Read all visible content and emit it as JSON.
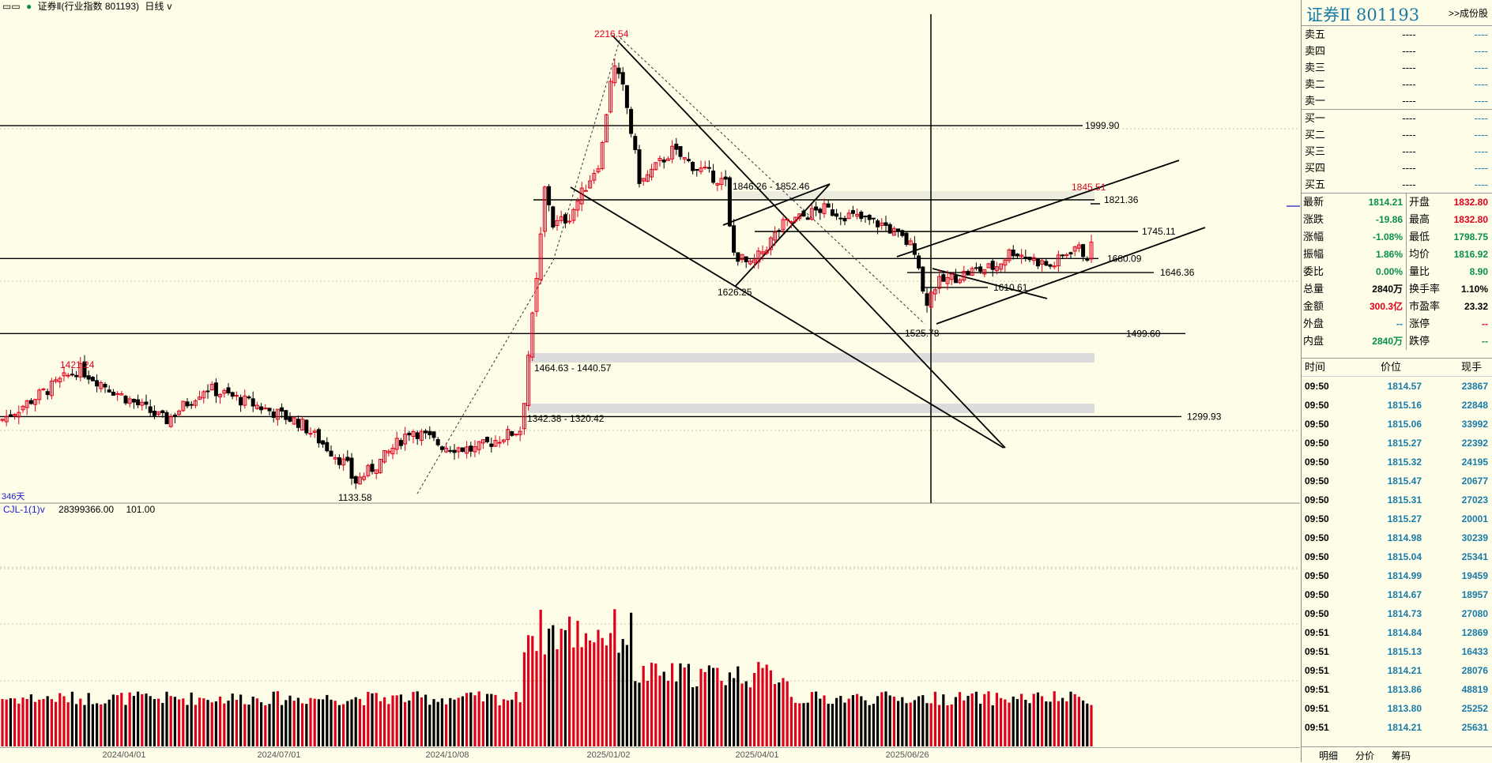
{
  "title_bar": {
    "name": "证券Ⅱ(行业指数 801193)",
    "period": "日线",
    "period_arrow": "v"
  },
  "chart": {
    "price_labels": {
      "high": "2216.54",
      "low": "1133.58",
      "left_high": "1421.24",
      "recent_high": "1845.51",
      "l1626": "1626.25",
      "l1525": "1525.78",
      "l1610": "1610.61",
      "l1646": "1646.36",
      "l1680": "1680.09",
      "l1745": "1745.11",
      "l1821": "1821.36",
      "l1999": "1999.90",
      "l1499": "1499.60",
      "l1299": "1299.93",
      "range1": "1846.26 - 1852.46",
      "range2": "1464.63 - 1440.57",
      "range3": "1342.38 - 1320.42"
    },
    "days": "346天",
    "x_axis": [
      "2024/04/01",
      "2024/07/01",
      "2024/10/08",
      "2025/01/02",
      "2025/04/01",
      "2025/06/26"
    ],
    "colors": {
      "up": "#e0001b",
      "down": "#000000",
      "bg": "#fdfde8"
    }
  },
  "volume": {
    "indicator": "CJL-1(1)",
    "arrow": "v",
    "value": "28399366.00",
    "value2": "101.00"
  },
  "panel": {
    "name": "证券Ⅱ",
    "code": "801193",
    "link": ">>成份股",
    "orderbook": [
      {
        "label": "卖五",
        "price": "----",
        "vol": "----"
      },
      {
        "label": "卖四",
        "price": "----",
        "vol": "----"
      },
      {
        "label": "卖三",
        "price": "----",
        "vol": "----"
      },
      {
        "label": "卖二",
        "price": "----",
        "vol": "----"
      },
      {
        "label": "卖一",
        "price": "----",
        "vol": "----"
      },
      {
        "label": "买一",
        "price": "----",
        "vol": "----"
      },
      {
        "label": "买二",
        "price": "----",
        "vol": "----"
      },
      {
        "label": "买三",
        "price": "----",
        "vol": "----"
      },
      {
        "label": "买四",
        "price": "----",
        "vol": "----"
      },
      {
        "label": "买五",
        "price": "----",
        "vol": "----"
      }
    ],
    "stats": [
      {
        "k1": "最新",
        "v1": "1814.21",
        "c1": "green",
        "k2": "开盘",
        "v2": "1832.80",
        "c2": "red"
      },
      {
        "k1": "涨跌",
        "v1": "-19.86",
        "c1": "green",
        "k2": "最高",
        "v2": "1832.80",
        "c2": "red"
      },
      {
        "k1": "涨幅",
        "v1": "-1.08%",
        "c1": "green",
        "k2": "最低",
        "v2": "1798.75",
        "c2": "green"
      },
      {
        "k1": "振幅",
        "v1": "1.86%",
        "c1": "green",
        "k2": "均价",
        "v2": "1816.92",
        "c2": "green"
      },
      {
        "k1": "委比",
        "v1": "0.00%",
        "c1": "green",
        "k2": "量比",
        "v2": "8.90",
        "c2": "green"
      },
      {
        "k1": "总量",
        "v1": "2840万",
        "c1": "blk",
        "k2": "换手率",
        "v2": "1.10%",
        "c2": "blk"
      },
      {
        "k1": "金额",
        "v1": "300.3亿",
        "c1": "red",
        "k2": "市盈率",
        "v2": "23.32",
        "c2": "blk"
      },
      {
        "k1": "外盘",
        "v1": "--",
        "c1": "blue",
        "k2": "涨停",
        "v2": "--",
        "c2": "red"
      },
      {
        "k1": "内盘",
        "v1": "2840万",
        "c1": "green",
        "k2": "跌停",
        "v2": "--",
        "c2": "green"
      }
    ],
    "ticks_header": {
      "time": "时间",
      "price": "价位",
      "vol": "现手"
    },
    "ticks": [
      {
        "time": "09:50",
        "price": "1814.57",
        "vol": "23867"
      },
      {
        "time": "09:50",
        "price": "1815.16",
        "vol": "22848"
      },
      {
        "time": "09:50",
        "price": "1815.06",
        "vol": "33992"
      },
      {
        "time": "09:50",
        "price": "1815.27",
        "vol": "22392"
      },
      {
        "time": "09:50",
        "price": "1815.32",
        "vol": "24195"
      },
      {
        "time": "09:50",
        "price": "1815.47",
        "vol": "20677"
      },
      {
        "time": "09:50",
        "price": "1815.31",
        "vol": "27023"
      },
      {
        "time": "09:50",
        "price": "1815.27",
        "vol": "20001"
      },
      {
        "time": "09:50",
        "price": "1814.98",
        "vol": "30239"
      },
      {
        "time": "09:50",
        "price": "1815.04",
        "vol": "25341"
      },
      {
        "time": "09:50",
        "price": "1814.99",
        "vol": "19459"
      },
      {
        "time": "09:50",
        "price": "1814.67",
        "vol": "18957"
      },
      {
        "time": "09:50",
        "price": "1814.73",
        "vol": "27080"
      },
      {
        "time": "09:51",
        "price": "1814.84",
        "vol": "12869"
      },
      {
        "time": "09:51",
        "price": "1815.13",
        "vol": "16433"
      },
      {
        "time": "09:51",
        "price": "1814.21",
        "vol": "28076"
      },
      {
        "time": "09:51",
        "price": "1813.86",
        "vol": "48819"
      },
      {
        "time": "09:51",
        "price": "1813.80",
        "vol": "25252"
      },
      {
        "time": "09:51",
        "price": "1814.21",
        "vol": "25631"
      }
    ],
    "tabs": [
      "明细",
      "分价",
      "筹码"
    ]
  }
}
